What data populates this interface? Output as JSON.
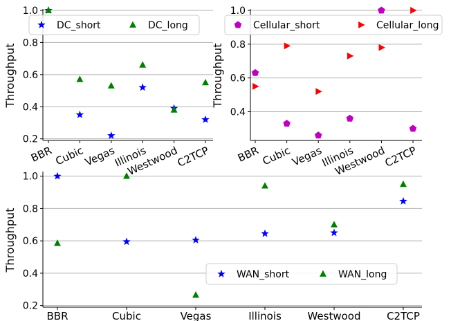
{
  "chart_data": [
    {
      "id": "dc",
      "type": "scatter",
      "categories": [
        "BBR",
        "Cubic",
        "Vegas",
        "Illinois",
        "Westwood",
        "C2TCP"
      ],
      "ylabel": "Throughput",
      "ylim": [
        0.19,
        1.0
      ],
      "yticks": [
        0.2,
        0.4,
        0.6,
        0.8,
        1.0
      ],
      "ytick_labels": [
        "0.2",
        "0.4",
        "0.6",
        "0.8",
        "1.0"
      ],
      "grid": "horizontal",
      "legend_position": "top",
      "series": [
        {
          "name": "DC_short",
          "marker": "star",
          "color": "#0000ff",
          "values": [
            1.0,
            0.35,
            0.22,
            0.52,
            0.39,
            0.32
          ]
        },
        {
          "name": "DC_long",
          "marker": "triangle",
          "color": "#008000",
          "values": [
            1.0,
            0.57,
            0.53,
            0.66,
            0.38,
            0.55
          ]
        }
      ]
    },
    {
      "id": "cellular",
      "type": "scatter",
      "categories": [
        "BBR",
        "Cubic",
        "Vegas",
        "Illinois",
        "Westwood",
        "C2TCP"
      ],
      "ylabel": "Throughput",
      "ylim": [
        0.23,
        1.0
      ],
      "yticks": [
        0.4,
        0.6,
        0.8,
        1.0
      ],
      "ytick_labels": [
        "0.4",
        "0.6",
        "0.8",
        "1.0"
      ],
      "grid": "horizontal",
      "legend_position": "top",
      "series": [
        {
          "name": "Cellular_short",
          "marker": "pentagon",
          "color": "#bf00bf",
          "values": [
            0.63,
            0.33,
            0.26,
            0.36,
            1.0,
            0.3
          ]
        },
        {
          "name": "Cellular_long",
          "marker": "triangle-right",
          "color": "#ff0000",
          "values": [
            0.55,
            0.79,
            0.52,
            0.73,
            0.78,
            1.0
          ]
        }
      ]
    },
    {
      "id": "wan",
      "type": "scatter",
      "categories": [
        "BBR",
        "Cubic",
        "Vegas",
        "Illinois",
        "Westwood",
        "C2TCP"
      ],
      "ylabel": "Throughput",
      "ylim": [
        0.19,
        1.02
      ],
      "yticks": [
        0.2,
        0.4,
        0.6,
        0.8,
        1.0
      ],
      "ytick_labels": [
        "0.2",
        "0.4",
        "0.6",
        "0.8",
        "1.0"
      ],
      "grid": "horizontal",
      "legend_position": "lower-right",
      "series": [
        {
          "name": "WAN_short",
          "marker": "star",
          "color": "#0000ff",
          "values": [
            1.0,
            0.595,
            0.605,
            0.645,
            0.65,
            0.845
          ]
        },
        {
          "name": "WAN_long",
          "marker": "triangle",
          "color": "#008000",
          "values": [
            0.585,
            1.0,
            0.265,
            0.94,
            0.7,
            0.95
          ]
        }
      ]
    }
  ]
}
